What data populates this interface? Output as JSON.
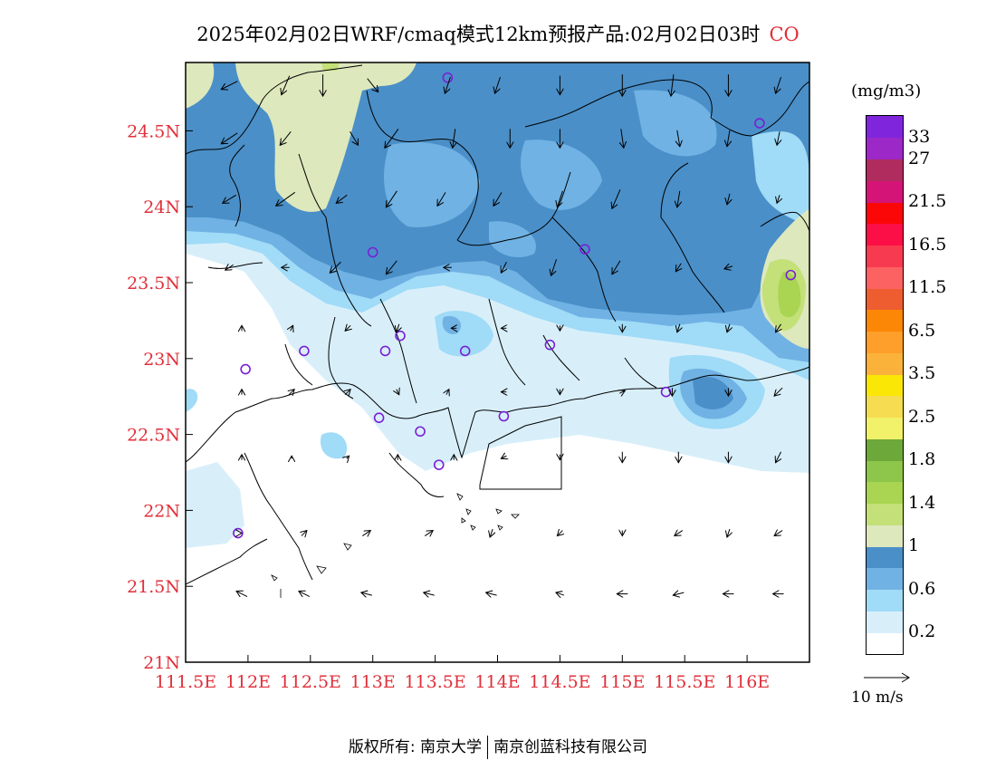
{
  "title": {
    "text": "2025年02月02日WRF/cmaq模式12km预报产品:02月02日03时",
    "species": "CO"
  },
  "legend": {
    "unit": "(mg/m3)",
    "colors": [
      "#ffffff",
      "#d8effa",
      "#a0dbf7",
      "#70b2e4",
      "#4a8fc8",
      "#dde8bc",
      "#c4e078",
      "#a9d552",
      "#8dc64a",
      "#6da83a",
      "#f2f26a",
      "#f6dc50",
      "#fbe706",
      "#fbb23a",
      "#fd9f2a",
      "#fc8706",
      "#ed5d30",
      "#fc6262",
      "#f83a50",
      "#fc0e46",
      "#fc0707",
      "#d51477",
      "#b02c5f",
      "#9c28c7",
      "#7f26dd"
    ],
    "labels": [
      {
        "text": "0.2",
        "after": 1
      },
      {
        "text": "0.6",
        "after": 3
      },
      {
        "text": "1",
        "after": 5
      },
      {
        "text": "1.4",
        "after": 7
      },
      {
        "text": "1.8",
        "after": 9
      },
      {
        "text": "2.5",
        "after": 11
      },
      {
        "text": "3.5",
        "after": 13
      },
      {
        "text": "6.5",
        "after": 15
      },
      {
        "text": "11.5",
        "after": 17
      },
      {
        "text": "16.5",
        "after": 19
      },
      {
        "text": "21.5",
        "after": 21
      },
      {
        "text": "27",
        "after": 23
      },
      {
        "text": "33",
        "after": 24
      }
    ]
  },
  "axes": {
    "x_ticks": [
      {
        "lon": 111.5,
        "label": "111.5E"
      },
      {
        "lon": 112,
        "label": "112E"
      },
      {
        "lon": 112.5,
        "label": "112.5E"
      },
      {
        "lon": 113,
        "label": "113E"
      },
      {
        "lon": 113.5,
        "label": "113.5E"
      },
      {
        "lon": 114,
        "label": "114E"
      },
      {
        "lon": 114.5,
        "label": "114.5E"
      },
      {
        "lon": 115,
        "label": "115E"
      },
      {
        "lon": 115.5,
        "label": "115.5E"
      },
      {
        "lon": 116,
        "label": "116E"
      }
    ],
    "y_ticks": [
      {
        "lat": 21,
        "label": "21N"
      },
      {
        "lat": 21.5,
        "label": "21.5N"
      },
      {
        "lat": 22,
        "label": "22N"
      },
      {
        "lat": 22.5,
        "label": "22.5N"
      },
      {
        "lat": 23,
        "label": "23N"
      },
      {
        "lat": 23.5,
        "label": "23.5N"
      },
      {
        "lat": 24,
        "label": "24N"
      },
      {
        "lat": 24.5,
        "label": "24.5N"
      }
    ],
    "lon_range": [
      111.5,
      116.5
    ],
    "lat_range": [
      21,
      24.95
    ]
  },
  "stations": [
    [
      113.6,
      24.85
    ],
    [
      116.1,
      24.55
    ],
    [
      113.0,
      23.7
    ],
    [
      114.7,
      23.72
    ],
    [
      116.35,
      23.55
    ],
    [
      113.22,
      23.15
    ],
    [
      113.1,
      23.05
    ],
    [
      112.45,
      23.05
    ],
    [
      113.74,
      23.05
    ],
    [
      114.42,
      23.09
    ],
    [
      111.98,
      22.93
    ],
    [
      115.35,
      22.78
    ],
    [
      113.05,
      22.61
    ],
    [
      113.38,
      22.52
    ],
    [
      114.05,
      22.62
    ],
    [
      113.53,
      22.3
    ],
    [
      111.92,
      21.85
    ]
  ],
  "wind": {
    "reference_label": "10 m/s",
    "vectors": [
      [
        111.85,
        24.8,
        -0.6,
        -0.3
      ],
      [
        112.3,
        24.8,
        -0.3,
        -0.7
      ],
      [
        112.6,
        24.8,
        0,
        -0.8
      ],
      [
        113.0,
        24.8,
        0.4,
        -0.5
      ],
      [
        113.6,
        24.8,
        -0.2,
        -0.6
      ],
      [
        114.0,
        24.8,
        -0.2,
        -0.6
      ],
      [
        114.5,
        24.8,
        0,
        -0.7
      ],
      [
        115.0,
        24.8,
        0,
        -0.8
      ],
      [
        115.4,
        24.8,
        -0.1,
        -0.8
      ],
      [
        115.85,
        24.8,
        0,
        -0.8
      ],
      [
        116.25,
        24.8,
        -0.2,
        -0.6
      ],
      [
        111.85,
        24.45,
        -0.6,
        -0.4
      ],
      [
        112.3,
        24.45,
        -0.4,
        -0.5
      ],
      [
        112.85,
        24.45,
        0.3,
        -0.5
      ],
      [
        113.15,
        24.45,
        -0.5,
        -0.7
      ],
      [
        113.65,
        24.45,
        -0.1,
        -0.7
      ],
      [
        114.1,
        24.45,
        0,
        -0.7
      ],
      [
        114.5,
        24.45,
        0,
        -0.7
      ],
      [
        115.0,
        24.45,
        0.1,
        -0.7
      ],
      [
        115.45,
        24.45,
        0.1,
        -0.6
      ],
      [
        115.85,
        24.45,
        -0.1,
        -0.6
      ],
      [
        116.25,
        24.45,
        -0.1,
        -0.5
      ],
      [
        111.85,
        24.05,
        -0.5,
        -0.3
      ],
      [
        112.3,
        24.05,
        -0.7,
        -0.5
      ],
      [
        112.75,
        24.05,
        -0.4,
        -0.3
      ],
      [
        113.15,
        24.05,
        -0.4,
        -0.6
      ],
      [
        113.55,
        24.05,
        -0.3,
        -0.5
      ],
      [
        114.0,
        24.05,
        -0.3,
        -0.5
      ],
      [
        114.5,
        24.05,
        -0.2,
        -0.6
      ],
      [
        114.95,
        24.05,
        -0.3,
        -0.7
      ],
      [
        115.45,
        24.05,
        -0.1,
        -0.6
      ],
      [
        115.85,
        24.05,
        -0.1,
        -0.4
      ],
      [
        116.25,
        24.05,
        -0.1,
        -0.3
      ],
      [
        111.85,
        23.6,
        -0.3,
        -0.2
      ],
      [
        112.3,
        23.6,
        -0.3,
        0
      ],
      [
        112.7,
        23.6,
        -0.4,
        -0.4
      ],
      [
        113.15,
        23.6,
        -0.4,
        -0.5
      ],
      [
        113.6,
        23.6,
        -0.3,
        0
      ],
      [
        114.05,
        23.6,
        -0.2,
        -0.4
      ],
      [
        114.45,
        23.6,
        -0.2,
        -0.6
      ],
      [
        114.95,
        23.6,
        -0.3,
        -0.5
      ],
      [
        115.45,
        23.6,
        -0.2,
        -0.3
      ],
      [
        115.85,
        23.6,
        -0.3,
        -0.1
      ],
      [
        111.95,
        23.2,
        0,
        0.2
      ],
      [
        112.35,
        23.2,
        0.1,
        0.2
      ],
      [
        112.8,
        23.2,
        -0.2,
        -0.2
      ],
      [
        113.2,
        23.2,
        -0.1,
        -0.3
      ],
      [
        113.65,
        23.2,
        -0.2,
        0
      ],
      [
        114.05,
        23.2,
        -0.2,
        0
      ],
      [
        114.5,
        23.2,
        0,
        -0.2
      ],
      [
        115.0,
        23.2,
        0,
        -0.3
      ],
      [
        115.45,
        23.2,
        -0.1,
        -0.3
      ],
      [
        115.85,
        23.2,
        -0.1,
        -0.3
      ],
      [
        116.25,
        23.2,
        -0.2,
        -0.3
      ],
      [
        111.95,
        22.78,
        0,
        0.2
      ],
      [
        112.35,
        22.78,
        0.2,
        0.2
      ],
      [
        112.8,
        22.78,
        0.2,
        0.2
      ],
      [
        113.2,
        22.78,
        0.1,
        -0.2
      ],
      [
        113.6,
        22.78,
        0.1,
        0.2
      ],
      [
        114.05,
        22.78,
        -0.2,
        0
      ],
      [
        114.5,
        22.78,
        0,
        -0.2
      ],
      [
        115.0,
        22.78,
        0.2,
        0.1
      ],
      [
        115.4,
        22.78,
        0,
        -0.3
      ],
      [
        115.85,
        22.78,
        0,
        -0.3
      ],
      [
        116.25,
        22.78,
        -0.3,
        -0.3
      ],
      [
        111.95,
        22.35,
        0,
        0.2
      ],
      [
        112.35,
        22.35,
        0,
        0.1
      ],
      [
        112.8,
        22.35,
        0.1,
        0.1
      ],
      [
        113.2,
        22.35,
        0,
        0.2
      ],
      [
        113.65,
        22.35,
        0,
        0.2
      ],
      [
        114.05,
        22.35,
        -0.2,
        -0.1
      ],
      [
        114.5,
        22.35,
        0,
        -0.2
      ],
      [
        115.0,
        22.35,
        0,
        -0.4
      ],
      [
        115.45,
        22.35,
        0,
        -0.4
      ],
      [
        115.85,
        22.35,
        0,
        -0.4
      ],
      [
        116.25,
        22.35,
        -0.2,
        -0.4
      ],
      [
        111.95,
        21.85,
        0,
        0
      ],
      [
        112.45,
        21.85,
        0.2,
        0.2
      ],
      [
        112.95,
        21.85,
        0.3,
        0.2
      ],
      [
        113.45,
        21.85,
        0.3,
        0.2
      ],
      [
        113.95,
        21.85,
        -0.1,
        -0.3
      ],
      [
        114.5,
        21.85,
        -0.2,
        -0.2
      ],
      [
        115.0,
        21.85,
        0,
        -0.2
      ],
      [
        115.45,
        21.85,
        -0.3,
        -0.2
      ],
      [
        115.85,
        21.85,
        -0.1,
        -0.3
      ],
      [
        116.25,
        21.85,
        -0.3,
        -0.2
      ],
      [
        111.95,
        21.45,
        -0.4,
        0.2
      ],
      [
        112.45,
        21.45,
        -0.4,
        0.2
      ],
      [
        112.95,
        21.45,
        -0.4,
        0.1
      ],
      [
        113.45,
        21.45,
        -0.4,
        0.1
      ],
      [
        113.95,
        21.45,
        -0.4,
        0.1
      ],
      [
        114.5,
        21.45,
        -0.3,
        0.1
      ],
      [
        115.0,
        21.45,
        -0.4,
        0
      ],
      [
        115.45,
        21.45,
        -0.4,
        -0.1
      ],
      [
        115.85,
        21.45,
        -0.4,
        0
      ],
      [
        116.25,
        21.45,
        -0.4,
        0
      ]
    ]
  },
  "footer": {
    "left": "版权所有: 南京大学",
    "right": "南京创蓝科技有限公司"
  }
}
